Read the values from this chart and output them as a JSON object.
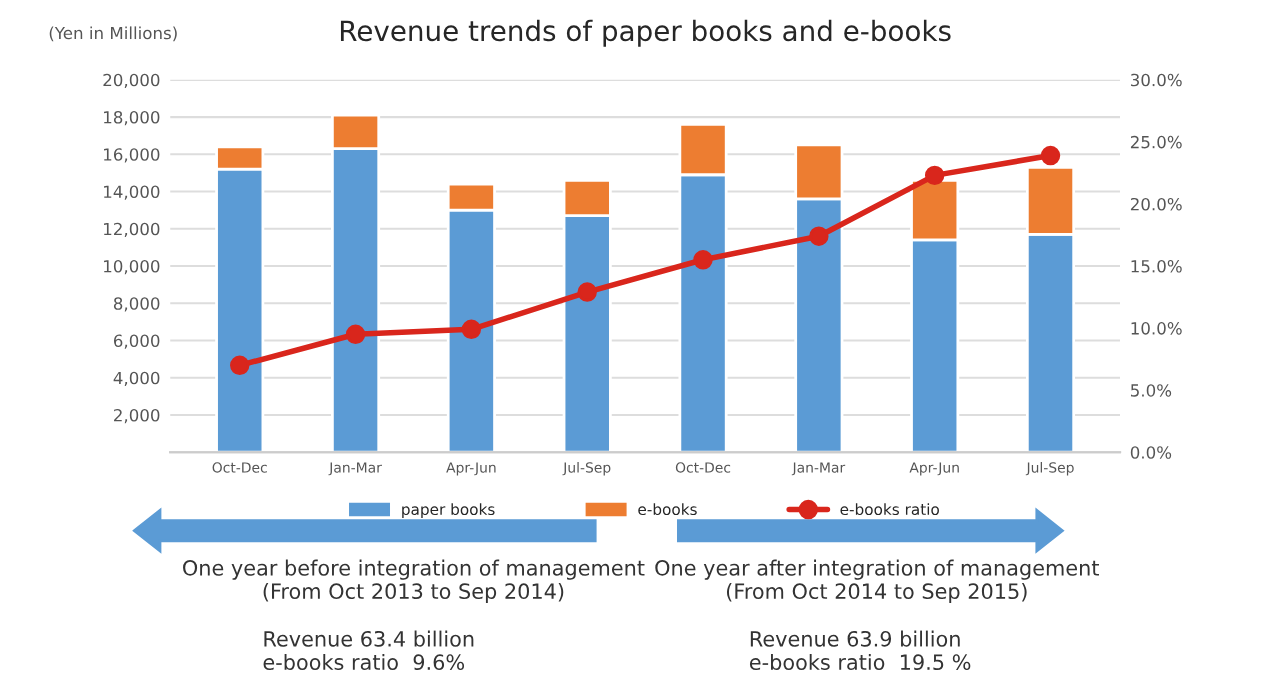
{
  "chart_data": {
    "type": "bar",
    "title": "Revenue trends of paper books and e-books",
    "ylabel": "(Yen in Millions)",
    "categories": [
      "Oct-Dec",
      "Jan-Mar",
      "Apr-Jun",
      "Jul-Sep",
      "Oct-Dec",
      "Jan-Mar",
      "Apr-Jun",
      "Jul-Sep"
    ],
    "stacked": true,
    "series": [
      {
        "name": "paper books",
        "color": "#5b9bd5",
        "values": [
          15200,
          16300,
          13000,
          12700,
          14900,
          13600,
          11400,
          11700
        ]
      },
      {
        "name": "e-books",
        "color": "#ed7d31",
        "values": [
          1200,
          1800,
          1400,
          1900,
          2700,
          2900,
          3200,
          3600
        ]
      },
      {
        "name": "e-books ratio",
        "type": "line",
        "axis": "y2",
        "color": "#d9261c",
        "marker": "circle",
        "values": [
          7.0,
          9.5,
          9.9,
          12.9,
          15.5,
          17.4,
          22.3,
          23.9
        ]
      }
    ],
    "ylim": [
      0,
      20000
    ],
    "yticks": [
      {
        "value": 2000,
        "label": "2,000"
      },
      {
        "value": 4000,
        "label": "4,000"
      },
      {
        "value": 6000,
        "label": "6,000"
      },
      {
        "value": 8000,
        "label": "8,000"
      },
      {
        "value": 10000,
        "label": "10,000"
      },
      {
        "value": 12000,
        "label": "12,000"
      },
      {
        "value": 14000,
        "label": "14,000"
      },
      {
        "value": 16000,
        "label": "16,000"
      },
      {
        "value": 18000,
        "label": "18,000"
      },
      {
        "value": 20000,
        "label": "20,000"
      }
    ],
    "y2lim": [
      0,
      30
    ],
    "y2ticks": [
      {
        "value": 0,
        "label": "0.0%"
      },
      {
        "value": 5,
        "label": "5.0%"
      },
      {
        "value": 10,
        "label": "10.0%"
      },
      {
        "value": 15,
        "label": "15.0%"
      },
      {
        "value": 20,
        "label": "20.0%"
      },
      {
        "value": 25,
        "label": "25.0%"
      },
      {
        "value": 30,
        "label": "30.0%"
      }
    ],
    "grid": "y",
    "legend": "bottom",
    "annotations": [
      "One year before integration of management\n(From Oct 2013 to Sep 2014)",
      "One year after integration of management\n(From Oct 2014 to Sep 2015)",
      "Revenue 63.4 billion\ne-books ratio  9.6%",
      "Revenue 63.9 billion\ne-books ratio  19.5 %"
    ]
  }
}
